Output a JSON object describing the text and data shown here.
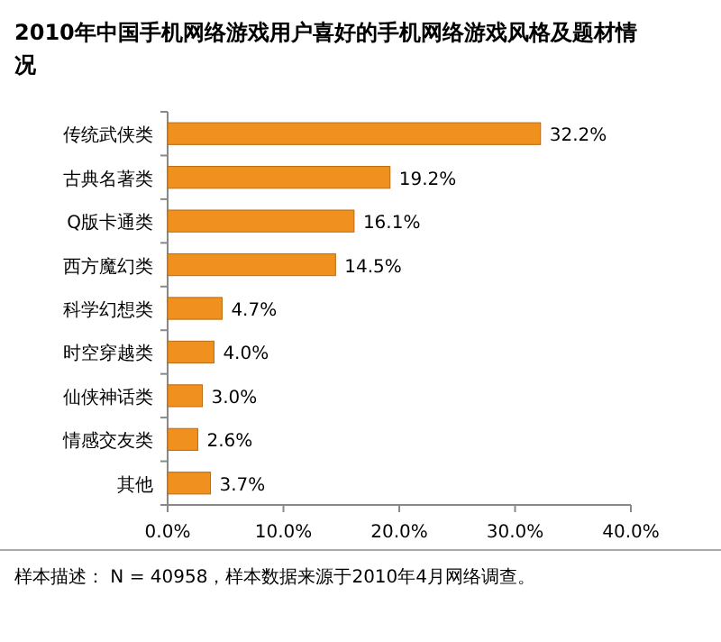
{
  "chart_data": {
    "type": "bar",
    "orientation": "horizontal",
    "title": "2010年中国手机网络游戏用户喜好的手机网络游戏风格及题材情况",
    "categories": [
      "传统武侠类",
      "古典名著类",
      "Q版卡通类",
      "西方魔幻类",
      "科学幻想类",
      "时空穿越类",
      "仙侠神话类",
      "情感交友类",
      "其他"
    ],
    "values": [
      32.2,
      19.2,
      16.1,
      14.5,
      4.7,
      4.0,
      3.0,
      2.6,
      3.7
    ],
    "value_labels": [
      "32.2%",
      "19.2%",
      "16.1%",
      "14.5%",
      "4.7%",
      "4.0%",
      "3.0%",
      "2.6%",
      "3.7%"
    ],
    "color": "#f0901e",
    "xlim": [
      0,
      40
    ],
    "xticks": [
      {
        "value": 0,
        "label": "0.0%"
      },
      {
        "value": 10,
        "label": "10.0%"
      },
      {
        "value": 20,
        "label": "20.0%"
      },
      {
        "value": 30,
        "label": "30.0%"
      },
      {
        "value": 40,
        "label": "40.0%"
      }
    ],
    "annotations": [
      "样本描述： N = 40958，样本数据来源于2010年4月网络调查。"
    ]
  }
}
